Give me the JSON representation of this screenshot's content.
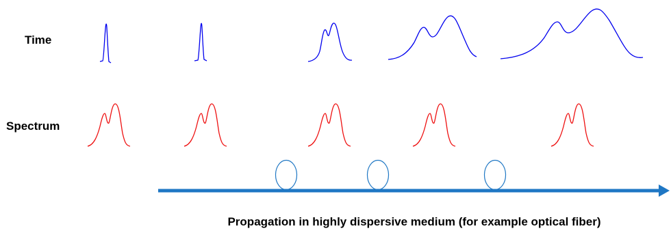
{
  "labels": {
    "time": "Time",
    "spectrum": "Spectrum"
  },
  "caption": "Propagation in highly dispersive medium (for example optical fiber)",
  "colors": {
    "time_pulse": "#0000ee",
    "spectrum": "#ee1111",
    "propagation_axis": "#1f77c4",
    "fiber_loop": "#1f77c4"
  },
  "stages": [
    {
      "time_pulse": "narrow single peak",
      "spectrum": "double peak"
    },
    {
      "time_pulse": "narrow single peak",
      "spectrum": "double peak"
    },
    {
      "time_pulse": "slightly broadened double peak",
      "spectrum": "double peak"
    },
    {
      "time_pulse": "broadened double peak",
      "spectrum": "double peak"
    },
    {
      "time_pulse": "strongly broadened double peak",
      "spectrum": "double peak"
    }
  ],
  "fiber_loops": 3
}
